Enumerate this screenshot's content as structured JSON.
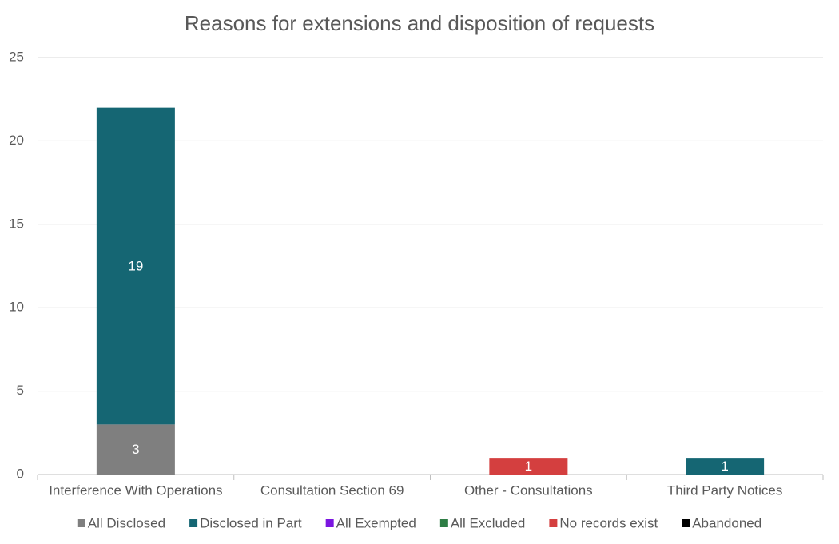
{
  "chart_data": {
    "type": "stacked_bar",
    "title": "Reasons for extensions and disposition of requests",
    "categories": [
      "Interference With Operations",
      "Consultation Section 69",
      "Other - Consultations",
      "Third Party Notices"
    ],
    "series": [
      {
        "name": "All Disclosed",
        "color": "#7f7f7f",
        "values": [
          3,
          0,
          0,
          0
        ]
      },
      {
        "name": "Disclosed in Part",
        "color": "#156673",
        "values": [
          19,
          0,
          0,
          1
        ]
      },
      {
        "name": "All Exempted",
        "color": "#7b16e0",
        "values": [
          0,
          0,
          0,
          0
        ]
      },
      {
        "name": "All Excluded",
        "color": "#2e7d45",
        "values": [
          0,
          0,
          0,
          0
        ]
      },
      {
        "name": "No records exist",
        "color": "#d43f3f",
        "values": [
          0,
          0,
          1,
          0
        ]
      },
      {
        "name": "Abandoned",
        "color": "#000000",
        "values": [
          0,
          0,
          0,
          0
        ]
      }
    ],
    "ylim": [
      0,
      25
    ],
    "yticks": [
      0,
      5,
      10,
      15,
      20,
      25
    ],
    "grid": true,
    "legend": "bottom"
  }
}
